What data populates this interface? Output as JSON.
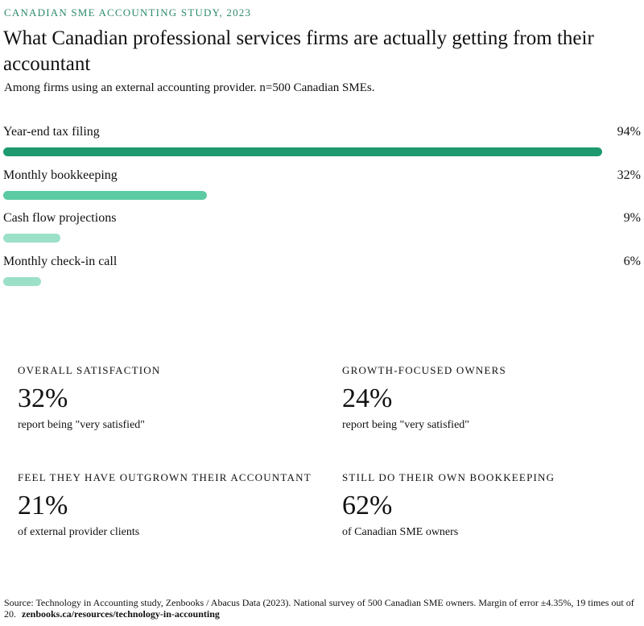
{
  "header": {
    "kicker": "CANADIAN SME ACCOUNTING STUDY, 2023",
    "title": "What Canadian professional services firms are actually getting from their accountant",
    "subtitle": "Among firms using an external accounting provider. n=500 Canadian SMEs."
  },
  "chart_data": {
    "type": "bar",
    "orientation": "horizontal",
    "categories": [
      "Year-end tax filing",
      "Monthly bookkeeping",
      "Cash flow projections",
      "Monthly check-in call"
    ],
    "values": [
      94,
      32,
      9,
      6
    ],
    "value_labels": [
      "94%",
      "32%",
      "9%",
      "6%"
    ],
    "unit": "%",
    "xlim": [
      0,
      100
    ],
    "colors": [
      "#1f9a6e",
      "#5ccaa3",
      "#9be0c7",
      "#9be0c7"
    ],
    "grid": false,
    "legend": "none"
  },
  "stats": [
    {
      "label": "OVERALL SATISFACTION",
      "value": "32%",
      "desc": "report being \"very satisfied\""
    },
    {
      "label": "GROWTH-FOCUSED OWNERS",
      "value": "24%",
      "desc": "report being \"very satisfied\""
    },
    {
      "label": "FEEL THEY HAVE OUTGROWN THEIR ACCOUNTANT",
      "value": "21%",
      "desc": "of external provider clients"
    },
    {
      "label": "STILL DO THEIR OWN BOOKKEEPING",
      "value": "62%",
      "desc": "of Canadian SME owners"
    }
  ],
  "footer": {
    "source": "Source: Technology in Accounting study, Zenbooks / Abacus Data (2023). National survey of 500 Canadian SME owners. Margin of error ±4.35%, 19 times out of 20.",
    "link": "zenbooks.ca/resources/technology-in-accounting"
  },
  "colors": {
    "accent": "#2e8b6e",
    "text": "#111111",
    "background": "#ffffff"
  }
}
